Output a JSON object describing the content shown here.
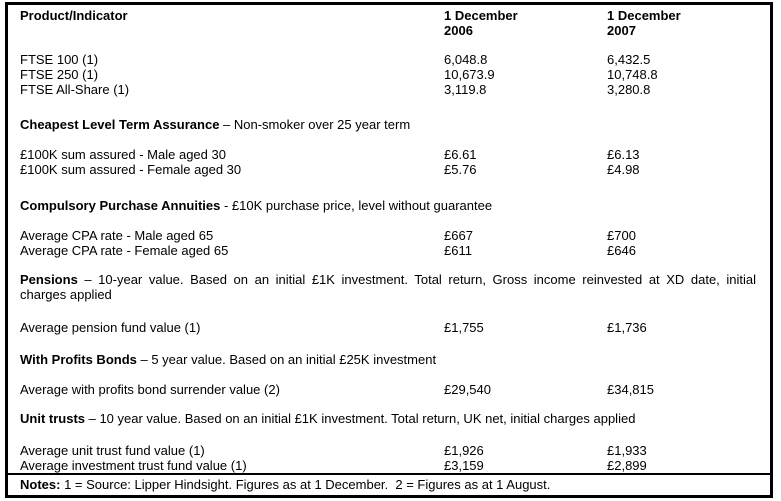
{
  "header": {
    "col1": "Product/Indicator",
    "col2_line1": "1 December",
    "col2_line2": "2006",
    "col3_line1": "1 December",
    "col3_line2": "2007"
  },
  "sections": [
    {
      "rows": [
        {
          "label": "FTSE 100 (1)",
          "v2006": "6,048.8",
          "v2007": "6,432.5"
        },
        {
          "label": "FTSE 250 (1)",
          "v2006": "10,673.9",
          "v2007": "10,748.8"
        },
        {
          "label": "FTSE All-Share (1)",
          "v2006": "3,119.8",
          "v2007": "3,280.8"
        }
      ]
    },
    {
      "title_bold": "Cheapest Level Term Assurance",
      "title_rest": " – Non-smoker over 25 year term",
      "rows": [
        {
          "label": "£100K sum assured - Male aged 30",
          "v2006": "£6.61",
          "v2007": "£6.13"
        },
        {
          "label": "£100K sum assured - Female aged 30",
          "v2006": "£5.76",
          "v2007": "£4.98"
        }
      ]
    },
    {
      "title_bold": "Compulsory Purchase Annuities",
      "title_rest": " - £10K purchase price, level without guarantee",
      "rows": [
        {
          "label": "Average CPA rate - Male aged 65",
          "v2006": "£667",
          "v2007": "£700"
        },
        {
          "label": "Average CPA rate - Female aged 65",
          "v2006": "£611",
          "v2007": "£646"
        }
      ]
    },
    {
      "title_bold": "Pensions",
      "title_rest": " – 10-year value. Based on an initial £1K investment. Total return, Gross income reinvested at XD date, initial",
      "title_line2": "charges applied",
      "rows": [
        {
          "label": "Average pension fund value  (1)",
          "v2006": "£1,755",
          "v2007": "£1,736"
        }
      ]
    },
    {
      "title_bold": "With Profits Bonds",
      "title_rest": " – 5 year value. Based on an initial £25K investment",
      "rows": [
        {
          "label": "Average with profits bond surrender value (2)",
          "v2006": "£29,540",
          "v2007": "£34,815"
        }
      ]
    },
    {
      "title_bold": "Unit trusts",
      "title_rest": " – 10 year value. Based on an initial  £1K investment. Total return, UK net, initial charges applied",
      "rows": [
        {
          "label": "Average unit trust fund value (1)",
          "v2006": "£1,926",
          "v2007": "£1,933"
        },
        {
          "label": "Average investment trust fund value (1)",
          "v2006": "£3,159",
          "v2007": "£2,899"
        }
      ]
    }
  ],
  "notes": {
    "bold": "Notes:",
    "text": " 1 = Source: Lipper Hindsight. Figures as at 1 December.  2 = Figures as at 1 August."
  },
  "colors": {
    "text": "#000000",
    "border": "#000000",
    "background": "#ffffff"
  }
}
